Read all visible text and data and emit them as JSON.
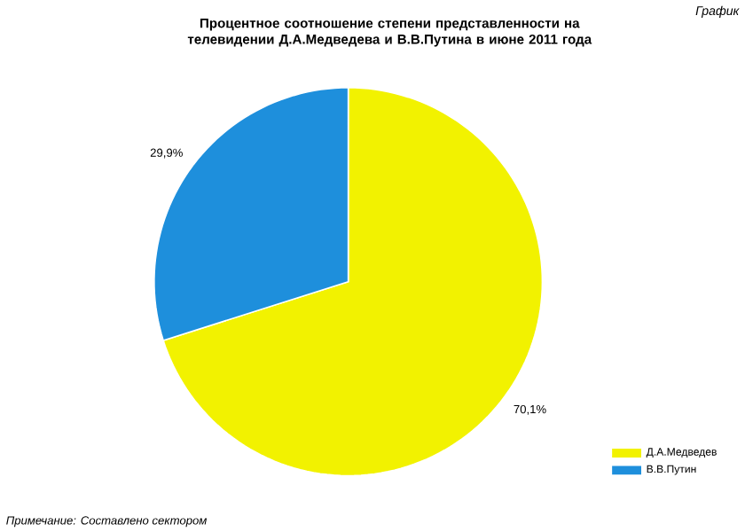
{
  "chart_data": {
    "type": "pie",
    "title": "Процентное соотношение степени представленности на телевидении Д.А.Медведева и В.В.Путина в июне 2011 года",
    "categories": [
      "Д.А.Медведев",
      "В.В.Путин"
    ],
    "values": [
      70.1,
      29.9
    ],
    "colors": [
      "#f2f200",
      "#1e8fdc"
    ],
    "value_labels": [
      "70,1%",
      "29,9%"
    ],
    "legend": "bottom right",
    "annotations": [
      "График",
      "Примечание: Составлено сектором"
    ]
  }
}
